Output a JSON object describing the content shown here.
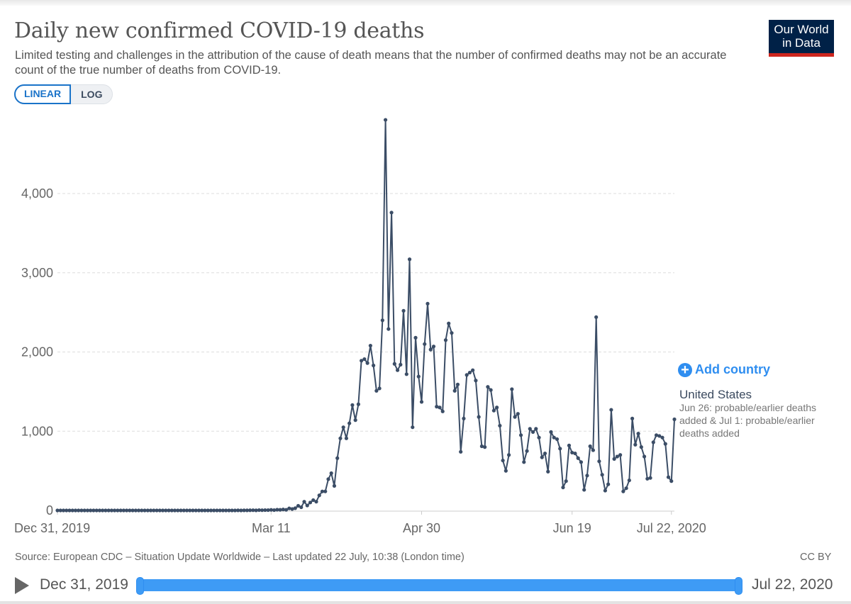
{
  "header": {
    "title": "Daily new confirmed COVID-19 deaths",
    "subtitle": "Limited testing and challenges in the attribution of the cause of death means that the number of confirmed deaths may not be an accurate count of the true number of deaths from COVID-19.",
    "logo_line1": "Our World",
    "logo_line2": "in Data"
  },
  "scale_toggle": {
    "options": [
      "LINEAR",
      "LOG"
    ],
    "selected": "LINEAR"
  },
  "legend": {
    "add_country_label": "Add country",
    "series_name": "United States",
    "series_note": "Jun 26: probable/earlier deaths added & Jul 1: probable/earlier deaths added"
  },
  "footer": {
    "source": "Source: European CDC – Situation Update Worldwide – Last updated 22 July, 10:38 (London time)",
    "license": "CC BY"
  },
  "timeline": {
    "start_label": "Dec 31, 2019",
    "end_label": "Jul 22, 2020",
    "range_start": 0,
    "range_end": 1
  },
  "colors": {
    "series": "#3b4d66",
    "accent": "#2f8ef0",
    "grid": "#dddddd"
  },
  "chart_data": {
    "type": "line",
    "title": "Daily new confirmed COVID-19 deaths",
    "xlabel": "",
    "ylabel": "",
    "x_start": "2019-12-31",
    "x_end": "2020-07-22",
    "x_ticks": [
      {
        "day": 0,
        "label": "Dec 31, 2019"
      },
      {
        "day": 71,
        "label": "Mar 11"
      },
      {
        "day": 121,
        "label": "Apr 30"
      },
      {
        "day": 171,
        "label": "Jun 19"
      },
      {
        "day": 204,
        "label": "Jul 22, 2020"
      }
    ],
    "y_ticks": [
      {
        "value": 0,
        "label": "0"
      },
      {
        "value": 1000,
        "label": "1,000"
      },
      {
        "value": 2000,
        "label": "2,000"
      },
      {
        "value": 3000,
        "label": "3,000"
      },
      {
        "value": 4000,
        "label": "4,000"
      }
    ],
    "ylim": [
      0,
      4000
    ],
    "grid": true,
    "series": [
      {
        "name": "United States",
        "values": [
          0,
          0,
          0,
          0,
          0,
          0,
          0,
          0,
          0,
          0,
          0,
          0,
          0,
          0,
          0,
          0,
          0,
          0,
          0,
          0,
          0,
          0,
          0,
          0,
          0,
          0,
          0,
          0,
          0,
          0,
          0,
          0,
          0,
          0,
          0,
          0,
          0,
          0,
          0,
          0,
          0,
          0,
          0,
          0,
          0,
          0,
          0,
          0,
          0,
          0,
          0,
          0,
          0,
          0,
          0,
          0,
          0,
          0,
          0,
          0,
          1,
          0,
          1,
          1,
          2,
          3,
          1,
          4,
          3,
          4,
          4,
          7,
          4,
          9,
          8,
          12,
          8,
          26,
          18,
          28,
          58,
          40,
          110,
          62,
          100,
          130,
          110,
          190,
          240,
          240,
          395,
          470,
          310,
          660,
          910,
          1050,
          910,
          1100,
          1330,
          1140,
          1340,
          1890,
          1910,
          1860,
          2080,
          1830,
          1510,
          1540,
          2400,
          4930,
          2290,
          3760,
          1850,
          1770,
          1840,
          2520,
          1720,
          3170,
          1050,
          2180,
          1690,
          1370,
          2100,
          2610,
          2030,
          2070,
          1310,
          1300,
          1250,
          2150,
          2360,
          2240,
          1510,
          1590,
          740,
          1160,
          1710,
          1740,
          1770,
          1640,
          1180,
          810,
          800,
          1560,
          1520,
          1260,
          1300,
          1070,
          630,
          500,
          700,
          1530,
          1180,
          1220,
          950,
          610,
          750,
          1030,
          990,
          1030,
          920,
          670,
          720,
          490,
          990,
          920,
          900,
          780,
          290,
          370,
          820,
          730,
          720,
          660,
          610,
          260,
          440,
          810,
          760,
          2440,
          620,
          450,
          250,
          330,
          1270,
          650,
          680,
          700,
          240,
          280,
          380,
          1160,
          830,
          970,
          800,
          680,
          400,
          410,
          860,
          950,
          940,
          920,
          840,
          420,
          370,
          1150
        ]
      }
    ]
  }
}
